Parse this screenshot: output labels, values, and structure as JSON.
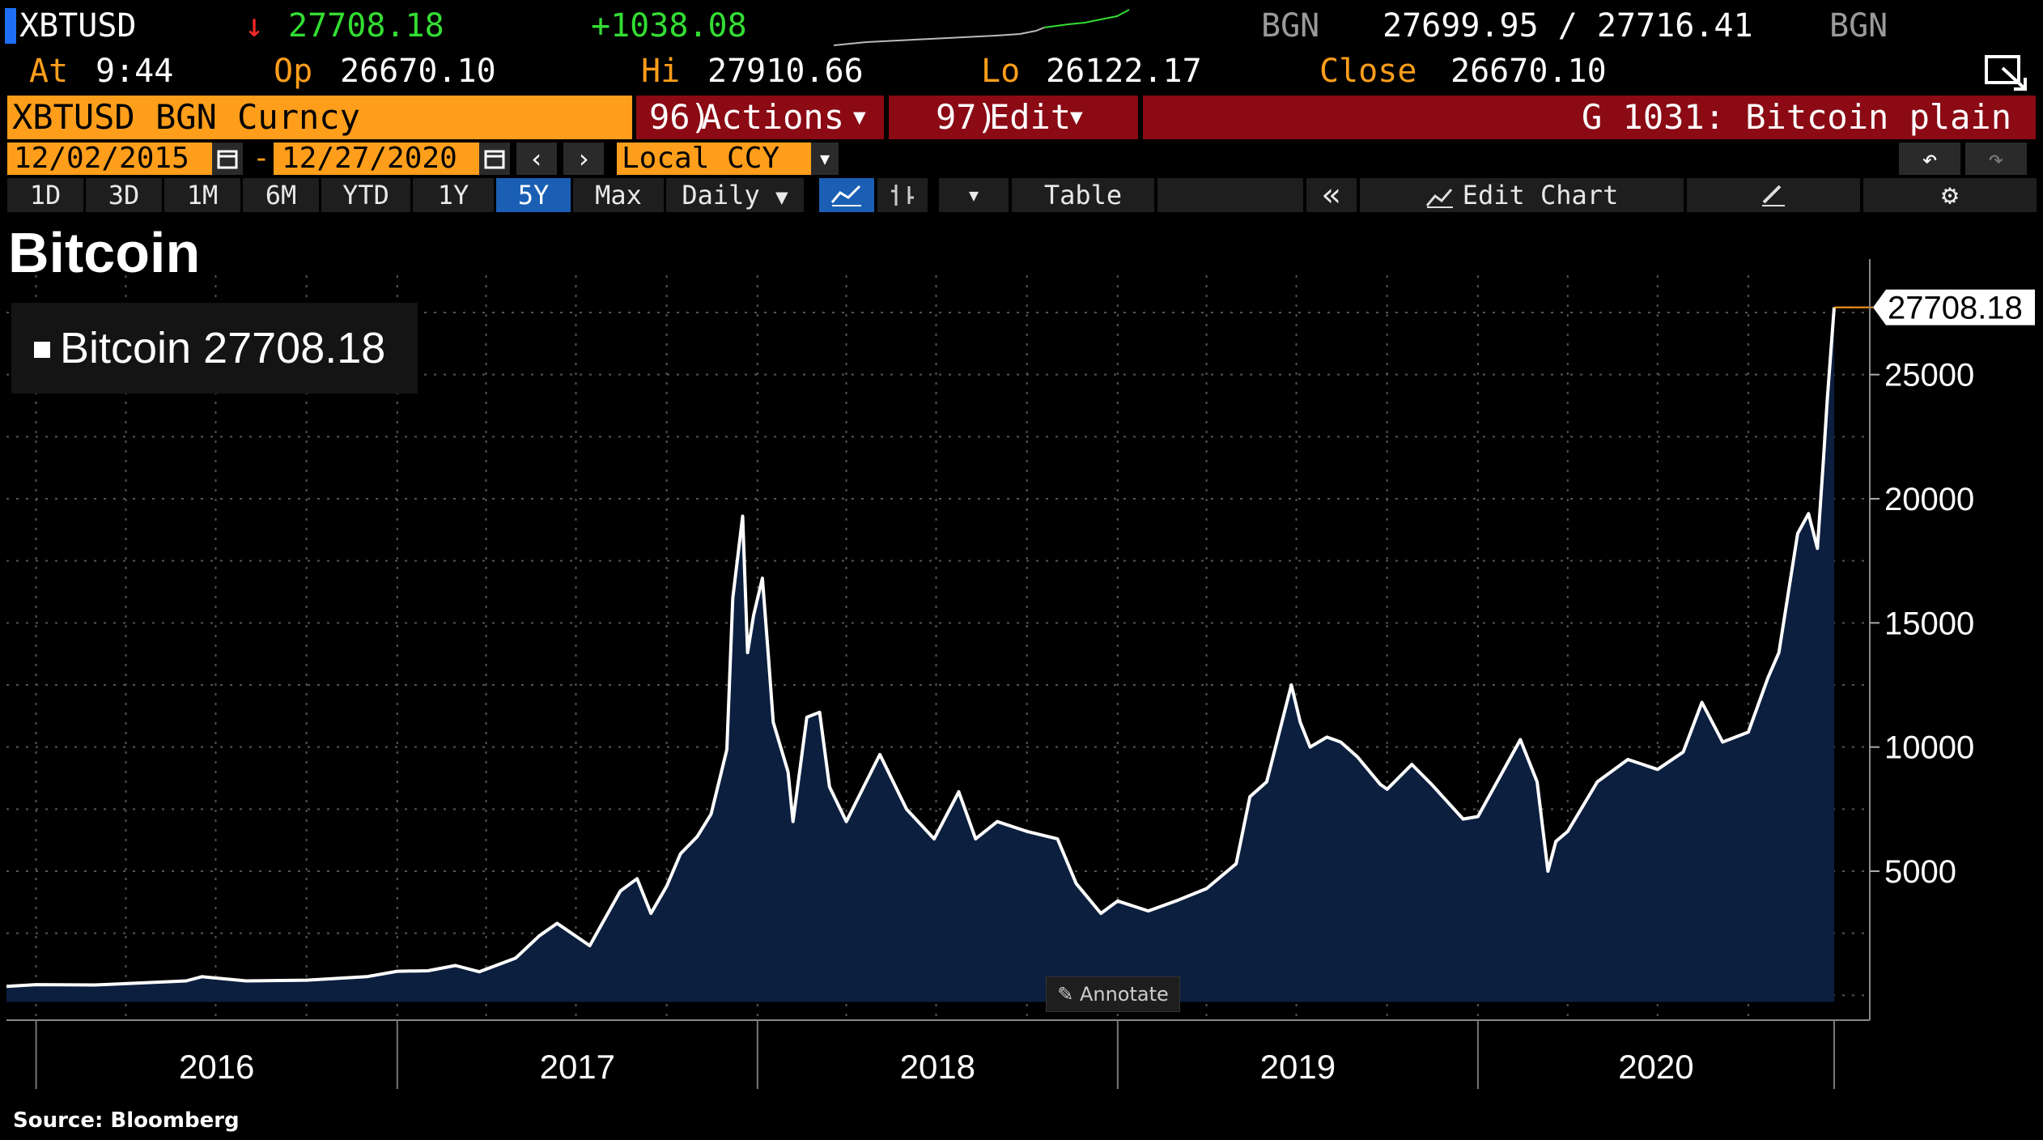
{
  "header": {
    "ticker": "XBTUSD",
    "last_price": "27708.18",
    "change": "+1038.08",
    "source_left": "BGN",
    "bid_ask": "27699.95 / 27716.41",
    "source_right": "BGN",
    "time_label": "At",
    "time": "9:44",
    "open_label": "Op",
    "open": "26670.10",
    "high_label": "Hi",
    "high": "27910.66",
    "low_label": "Lo",
    "low": "26122.17",
    "close_label": "Close",
    "close": "26670.10"
  },
  "function_bar": {
    "security": "XBTUSD BGN Curncy",
    "actions_num": "96)",
    "actions_label": "Actions",
    "edit_num": "97)",
    "edit_label": "Edit",
    "function_title": "G 1031: Bitcoin plain"
  },
  "date_range": {
    "start": "12/02/2015",
    "separator": "-",
    "end": "12/27/2020",
    "currency": "Local CCY"
  },
  "toolbar": {
    "periods": [
      "1D",
      "3D",
      "1M",
      "6M",
      "YTD",
      "1Y",
      "5Y",
      "Max"
    ],
    "active_period": "5Y",
    "frequency": "Daily",
    "table_label": "Table",
    "edit_chart_label": "Edit Chart"
  },
  "colors": {
    "accent_orange": "#ff9e1b",
    "header_red": "#8b0a14",
    "active_blue": "#1a5fb4",
    "area_fill": "#0c1f3f",
    "line": "#ffffff"
  },
  "icons": [
    "calendar-icon",
    "chevron-left-icon",
    "chevron-right-icon",
    "dropdown-arrow-icon",
    "line-chart-icon",
    "bar-chart-icon",
    "double-chevron-left-icon",
    "edit-chart-icon",
    "pen-icon",
    "gear-icon",
    "undo-icon",
    "redo-icon",
    "window-pop-icon",
    "down-arrow-icon"
  ],
  "chart_data": {
    "type": "area",
    "title": "Bitcoin",
    "source": "Source: Bloomberg",
    "legend": "Bitcoin 27708.18",
    "legend_position": "top-left",
    "last_value_label": "27708.18",
    "annotate_label": "Annotate",
    "grid": true,
    "ylim": [
      -1000,
      29000
    ],
    "y_ticks": [
      5000,
      10000,
      15000,
      20000,
      25000
    ],
    "x_tick_labels": [
      "2016",
      "2017",
      "2018",
      "2019",
      "2020"
    ],
    "series": [
      {
        "x": [
          "2015-12-02",
          "2016-01-01",
          "2016-03-01",
          "2016-06-01",
          "2016-06-17",
          "2016-08-01",
          "2016-10-01",
          "2016-12-01",
          "2017-01-01",
          "2017-02-01",
          "2017-03-01",
          "2017-03-25",
          "2017-05-01",
          "2017-05-25",
          "2017-06-12",
          "2017-07-15",
          "2017-08-15",
          "2017-09-01",
          "2017-09-15",
          "2017-10-01",
          "2017-10-15",
          "2017-11-01",
          "2017-11-15",
          "2017-12-01",
          "2017-12-07",
          "2017-12-17",
          "2017-12-22",
          "2017-12-28",
          "2018-01-06",
          "2018-01-12",
          "2018-01-17",
          "2018-02-01",
          "2018-02-06",
          "2018-02-20",
          "2018-03-05",
          "2018-03-15",
          "2018-04-01",
          "2018-05-05",
          "2018-06-01",
          "2018-06-29",
          "2018-07-24",
          "2018-08-10",
          "2018-09-01",
          "2018-10-01",
          "2018-11-01",
          "2018-11-20",
          "2018-12-15",
          "2019-01-01",
          "2019-02-01",
          "2019-03-01",
          "2019-04-01",
          "2019-05-01",
          "2019-05-15",
          "2019-06-01",
          "2019-06-26",
          "2019-07-05",
          "2019-07-15",
          "2019-08-01",
          "2019-08-15",
          "2019-09-01",
          "2019-09-24",
          "2019-10-01",
          "2019-10-26",
          "2019-11-15",
          "2019-12-17",
          "2020-01-01",
          "2020-02-13",
          "2020-03-01",
          "2020-03-12",
          "2020-03-20",
          "2020-04-01",
          "2020-05-01",
          "2020-06-01",
          "2020-07-01",
          "2020-07-27",
          "2020-08-15",
          "2020-09-05",
          "2020-10-01",
          "2020-10-21",
          "2020-11-01",
          "2020-11-20",
          "2020-12-01",
          "2020-12-10",
          "2020-12-16",
          "2020-12-20",
          "2020-12-27"
        ],
        "values": [
          360,
          430,
          420,
          580,
          750,
          580,
          610,
          750,
          970,
          990,
          1200,
          950,
          1500,
          2400,
          2900,
          2000,
          4200,
          4700,
          3300,
          4400,
          5700,
          6400,
          7300,
          9900,
          16000,
          19300,
          13800,
          15300,
          16800,
          13700,
          11000,
          9000,
          7000,
          11200,
          11400,
          8400,
          7000,
          9700,
          7500,
          6300,
          8200,
          6300,
          7000,
          6600,
          6300,
          4500,
          3300,
          3800,
          3400,
          3800,
          4300,
          5300,
          8000,
          8600,
          12500,
          11000,
          10000,
          10400,
          10200,
          9600,
          8500,
          8300,
          9300,
          8500,
          7100,
          7200,
          10300,
          8600,
          5000,
          6200,
          6600,
          8600,
          9500,
          9100,
          9800,
          11800,
          10200,
          10600,
          12800,
          13800,
          18600,
          19400,
          18000,
          21500,
          24000,
          27708
        ]
      }
    ]
  }
}
